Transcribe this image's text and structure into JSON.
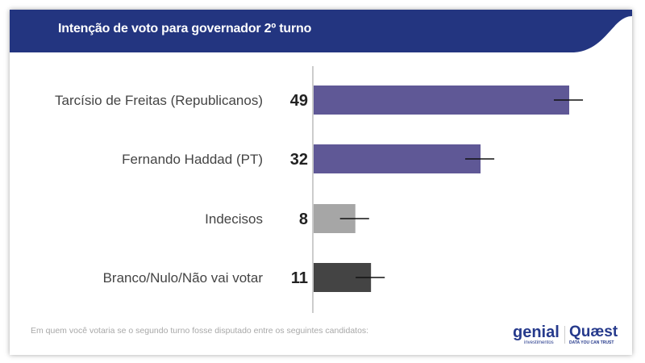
{
  "header": {
    "title": "Intenção de voto para governador 2º turno",
    "color": "#233580"
  },
  "footer": {
    "note": "Em quem você votaria se o segundo turno fosse disputado entre os seguintes candidatos:"
  },
  "logos": {
    "genial": "genial",
    "genial_sub": "investimentos",
    "quaest": "Quæst",
    "quaest_sub": "DATA YOU CAN TRUST"
  },
  "chart_data": {
    "type": "bar",
    "orientation": "horizontal",
    "categories": [
      "Tarcísio de Freitas (Republicanos)",
      "Fernando Haddad (PT)",
      "Indecisos",
      "Branco/Nulo/Não vai votar"
    ],
    "values": [
      49,
      32,
      8,
      11
    ],
    "labels": [
      "49",
      "32",
      "8",
      "11"
    ],
    "colors": [
      "#5f5896",
      "#5f5896",
      "#a6a6a6",
      "#444444"
    ],
    "error_margin": 3,
    "xlim": [
      0,
      60
    ],
    "grid": false
  }
}
